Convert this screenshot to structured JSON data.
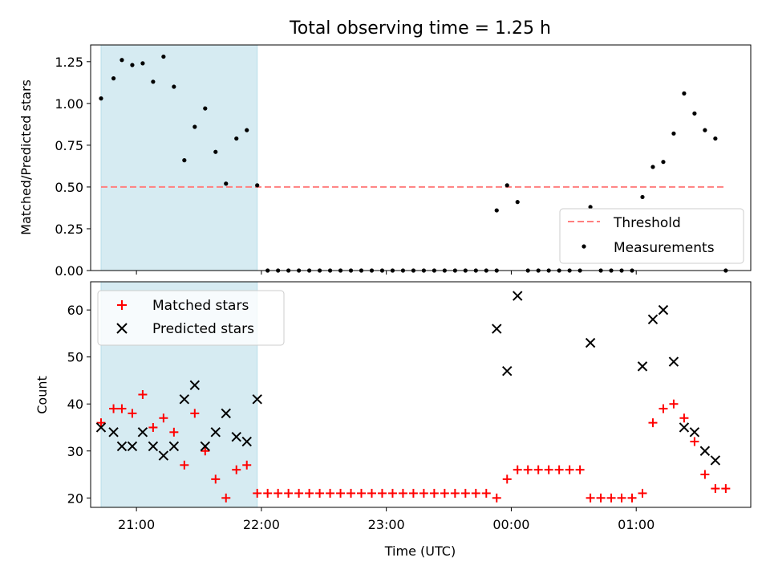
{
  "chart_data": [
    {
      "type": "scatter",
      "title": "Total observing time = 1.25 h",
      "xlabel": "",
      "ylabel": "Matched/Predicted stars",
      "xlim": [
        "20:38",
        "24:55+01:00"
      ],
      "x_ticks": [
        "21:00",
        "22:00",
        "23:00",
        "00:00",
        "01:00"
      ],
      "ylim": [
        0,
        1.35
      ],
      "y_ticks": [
        "0.00",
        "0.25",
        "0.50",
        "0.75",
        "1.00",
        "1.25"
      ],
      "highlight_span": [
        "20:43",
        "21:58"
      ],
      "legend": {
        "position": "lower-right",
        "entries": [
          "Threshold",
          "Measurements"
        ]
      },
      "threshold": {
        "name": "Threshold",
        "y": 0.5,
        "x_range": [
          "20:43",
          "01:43"
        ],
        "color": "#ff7f7f",
        "style": "dashed"
      },
      "series": [
        {
          "name": "Measurements",
          "color": "#000000",
          "marker": "dot",
          "points": [
            [
              "20:43",
              1.03
            ],
            [
              "20:49",
              1.15
            ],
            [
              "20:53",
              1.26
            ],
            [
              "20:58",
              1.23
            ],
            [
              "21:03",
              1.24
            ],
            [
              "21:08",
              1.13
            ],
            [
              "21:13",
              1.28
            ],
            [
              "21:18",
              1.1
            ],
            [
              "21:23",
              0.66
            ],
            [
              "21:28",
              0.86
            ],
            [
              "21:33",
              0.97
            ],
            [
              "21:38",
              0.71
            ],
            [
              "21:43",
              0.52
            ],
            [
              "21:48",
              0.79
            ],
            [
              "21:53",
              0.84
            ],
            [
              "21:58",
              0.51
            ],
            [
              "22:03",
              0.0
            ],
            [
              "22:08",
              0.0
            ],
            [
              "22:13",
              0.0
            ],
            [
              "22:18",
              0.0
            ],
            [
              "22:23",
              0.0
            ],
            [
              "22:28",
              0.0
            ],
            [
              "22:33",
              0.0
            ],
            [
              "22:38",
              0.0
            ],
            [
              "22:43",
              0.0
            ],
            [
              "22:48",
              0.0
            ],
            [
              "22:53",
              0.0
            ],
            [
              "22:58",
              0.0
            ],
            [
              "23:03",
              0.0
            ],
            [
              "23:08",
              0.0
            ],
            [
              "23:13",
              0.0
            ],
            [
              "23:18",
              0.0
            ],
            [
              "23:23",
              0.0
            ],
            [
              "23:28",
              0.0
            ],
            [
              "23:33",
              0.0
            ],
            [
              "23:38",
              0.0
            ],
            [
              "23:43",
              0.0
            ],
            [
              "23:48",
              0.0
            ],
            [
              "23:53",
              0.0
            ],
            [
              "23:53",
              0.36
            ],
            [
              "23:58",
              0.51
            ],
            [
              "24:03",
              0.41
            ],
            [
              "24:08",
              0.0
            ],
            [
              "24:13",
              0.0
            ],
            [
              "24:18",
              0.0
            ],
            [
              "24:23",
              0.0
            ],
            [
              "24:28",
              0.0
            ],
            [
              "24:33",
              0.0
            ],
            [
              "24:38",
              0.38
            ],
            [
              "24:43",
              0.0
            ],
            [
              "24:48",
              0.0
            ],
            [
              "24:53",
              0.0
            ],
            [
              "24:58",
              0.0
            ],
            [
              "25:03",
              0.44
            ],
            [
              "25:08",
              0.62
            ],
            [
              "25:13",
              0.65
            ],
            [
              "25:18",
              0.82
            ],
            [
              "25:23",
              1.06
            ],
            [
              "25:28",
              0.94
            ],
            [
              "25:33",
              0.84
            ],
            [
              "25:38",
              0.79
            ],
            [
              "25:43",
              0.0
            ]
          ]
        }
      ]
    },
    {
      "type": "scatter",
      "title": "",
      "xlabel": "Time (UTC)",
      "ylabel": "Count",
      "xlim": [
        "20:38",
        "24:55+01:00"
      ],
      "x_ticks": [
        "21:00",
        "22:00",
        "23:00",
        "00:00",
        "01:00"
      ],
      "ylim": [
        18,
        66
      ],
      "y_ticks": [
        "20",
        "30",
        "40",
        "50",
        "60"
      ],
      "highlight_span": [
        "20:43",
        "21:58"
      ],
      "legend": {
        "position": "top-left",
        "entries": [
          "Matched stars",
          "Predicted stars"
        ]
      },
      "series": [
        {
          "name": "Matched stars",
          "color": "#ff0000",
          "marker": "plus",
          "points": [
            [
              "20:43",
              36
            ],
            [
              "20:49",
              39
            ],
            [
              "20:53",
              39
            ],
            [
              "20:58",
              38
            ],
            [
              "21:03",
              42
            ],
            [
              "21:08",
              35
            ],
            [
              "21:13",
              37
            ],
            [
              "21:18",
              34
            ],
            [
              "21:23",
              27
            ],
            [
              "21:28",
              38
            ],
            [
              "21:33",
              30
            ],
            [
              "21:38",
              24
            ],
            [
              "21:43",
              20
            ],
            [
              "21:48",
              26
            ],
            [
              "21:53",
              27
            ],
            [
              "21:58",
              21
            ],
            [
              "22:03",
              21
            ],
            [
              "22:08",
              21
            ],
            [
              "22:13",
              21
            ],
            [
              "22:18",
              21
            ],
            [
              "22:23",
              21
            ],
            [
              "22:28",
              21
            ],
            [
              "22:33",
              21
            ],
            [
              "22:38",
              21
            ],
            [
              "22:43",
              21
            ],
            [
              "22:48",
              21
            ],
            [
              "22:53",
              21
            ],
            [
              "22:58",
              21
            ],
            [
              "23:03",
              21
            ],
            [
              "23:08",
              21
            ],
            [
              "23:13",
              21
            ],
            [
              "23:18",
              21
            ],
            [
              "23:23",
              21
            ],
            [
              "23:28",
              21
            ],
            [
              "23:33",
              21
            ],
            [
              "23:38",
              21
            ],
            [
              "23:43",
              21
            ],
            [
              "23:48",
              21
            ],
            [
              "23:53",
              20
            ],
            [
              "23:58",
              24
            ],
            [
              "24:03",
              26
            ],
            [
              "24:08",
              26
            ],
            [
              "24:13",
              26
            ],
            [
              "24:18",
              26
            ],
            [
              "24:23",
              26
            ],
            [
              "24:28",
              26
            ],
            [
              "24:33",
              26
            ],
            [
              "24:38",
              20
            ],
            [
              "24:43",
              20
            ],
            [
              "24:48",
              20
            ],
            [
              "24:53",
              20
            ],
            [
              "24:58",
              20
            ],
            [
              "25:03",
              21
            ],
            [
              "25:08",
              36
            ],
            [
              "25:13",
              39
            ],
            [
              "25:18",
              40
            ],
            [
              "25:23",
              37
            ],
            [
              "25:28",
              32
            ],
            [
              "25:33",
              25
            ],
            [
              "25:38",
              22
            ],
            [
              "25:43",
              22
            ]
          ]
        },
        {
          "name": "Predicted stars",
          "color": "#000000",
          "marker": "x",
          "points": [
            [
              "20:43",
              35
            ],
            [
              "20:49",
              34
            ],
            [
              "20:53",
              31
            ],
            [
              "20:58",
              31
            ],
            [
              "21:03",
              34
            ],
            [
              "21:08",
              31
            ],
            [
              "21:13",
              29
            ],
            [
              "21:18",
              31
            ],
            [
              "21:23",
              41
            ],
            [
              "21:28",
              44
            ],
            [
              "21:33",
              31
            ],
            [
              "21:38",
              34
            ],
            [
              "21:43",
              38
            ],
            [
              "21:48",
              33
            ],
            [
              "21:53",
              32
            ],
            [
              "21:58",
              41
            ],
            [
              "23:53",
              56
            ],
            [
              "23:58",
              47
            ],
            [
              "24:03",
              63
            ],
            [
              "24:38",
              53
            ],
            [
              "25:03",
              48
            ],
            [
              "25:08",
              58
            ],
            [
              "25:13",
              60
            ],
            [
              "25:18",
              49
            ],
            [
              "25:23",
              35
            ],
            [
              "25:28",
              34
            ],
            [
              "25:33",
              30
            ],
            [
              "25:38",
              28
            ]
          ]
        }
      ]
    }
  ]
}
